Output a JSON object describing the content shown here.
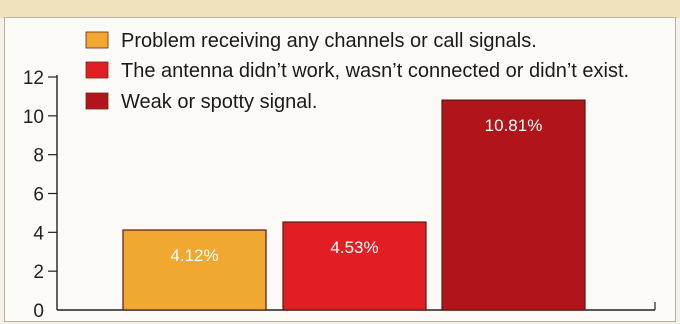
{
  "chart_data": {
    "type": "bar",
    "categories": [
      "Problem receiving any channels or call signals.",
      "The antenna didn’t work, wasn’t connected or didn’t exist.",
      "Weak or spotty signal."
    ],
    "values": [
      4.12,
      4.53,
      10.81
    ],
    "value_labels": [
      "4.12%",
      "4.53%",
      "10.81%"
    ],
    "colors": [
      "#f0a830",
      "#e21d23",
      "#b1141a"
    ],
    "legend_placement": "top",
    "ylim": [
      0,
      12
    ],
    "yticks": [
      0,
      2,
      4,
      6,
      8,
      10,
      12
    ],
    "grid": false
  }
}
